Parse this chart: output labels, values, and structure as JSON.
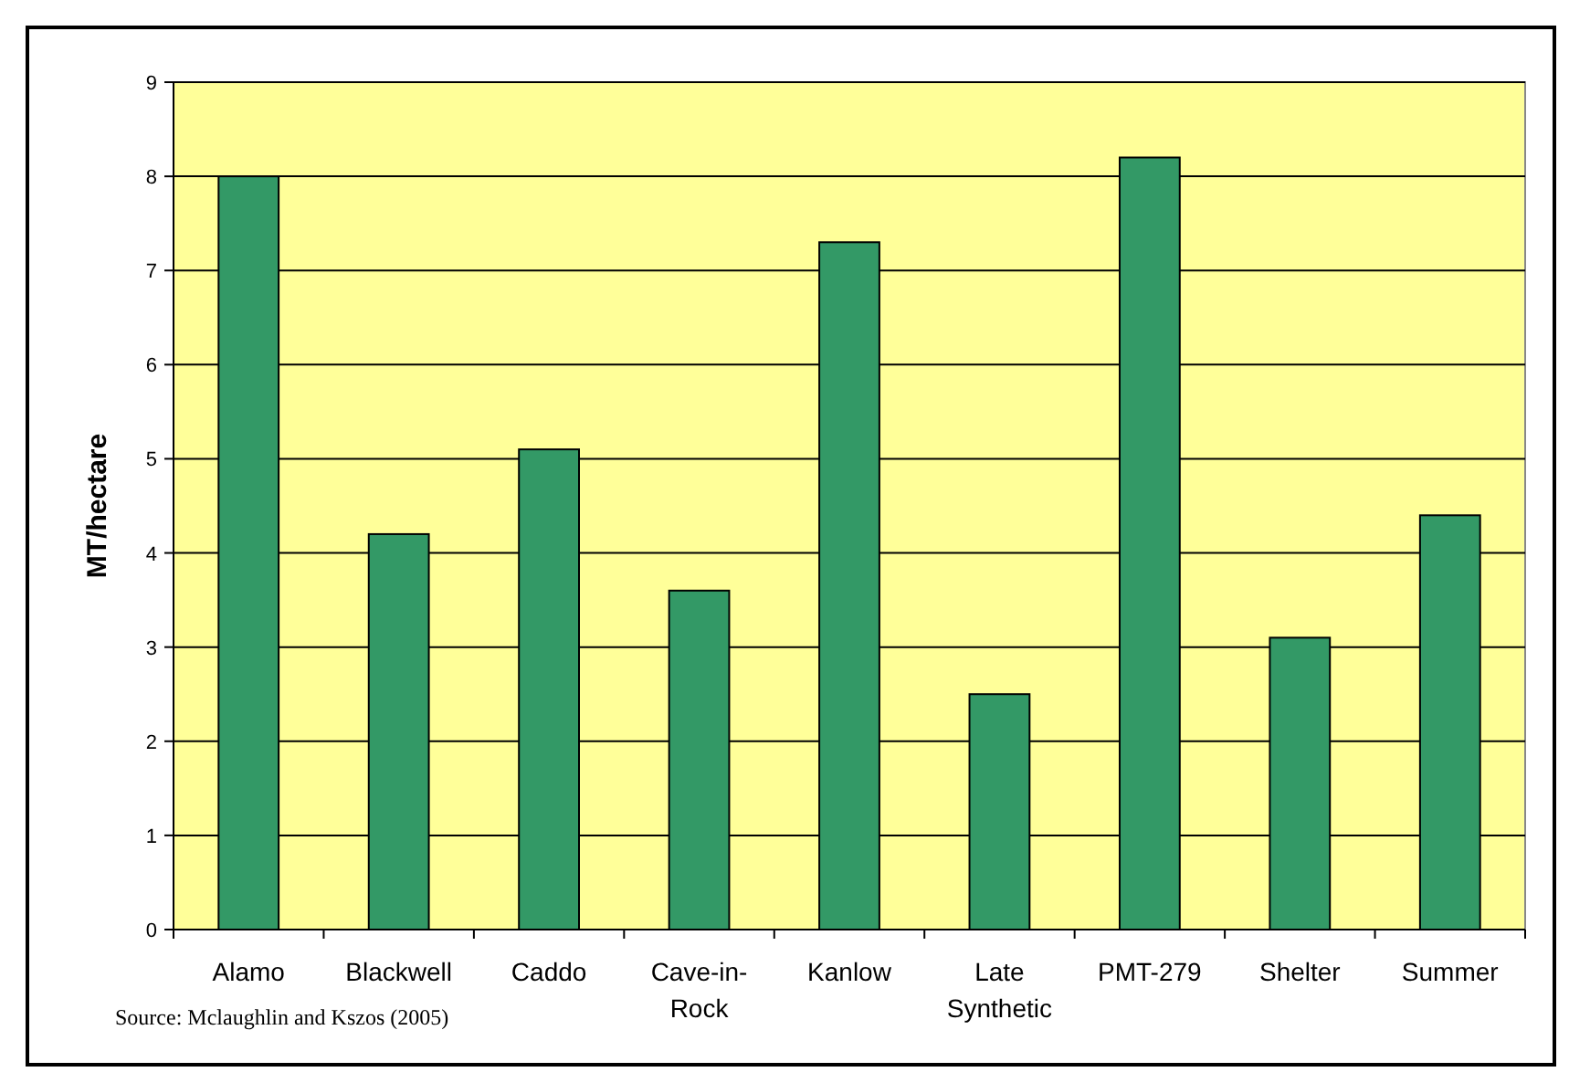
{
  "chart_data": {
    "type": "bar",
    "ylabel": "MT/hectare",
    "categories": [
      "Alamo",
      "Blackwell",
      "Caddo",
      "Cave-in-Rock",
      "Kanlow",
      "Late Synthetic",
      "PMT-279",
      "Shelter",
      "Summer"
    ],
    "values": [
      8.0,
      4.2,
      5.1,
      3.6,
      7.3,
      2.5,
      8.2,
      3.1,
      4.4
    ],
    "color": "#339966",
    "ylim": [
      0,
      9
    ],
    "yticks": [
      0,
      1,
      2,
      3,
      4,
      5,
      6,
      7,
      8,
      9
    ],
    "grid": "y",
    "annotations": [
      "Source: Mclaughlin and Kszos (2005)"
    ]
  }
}
